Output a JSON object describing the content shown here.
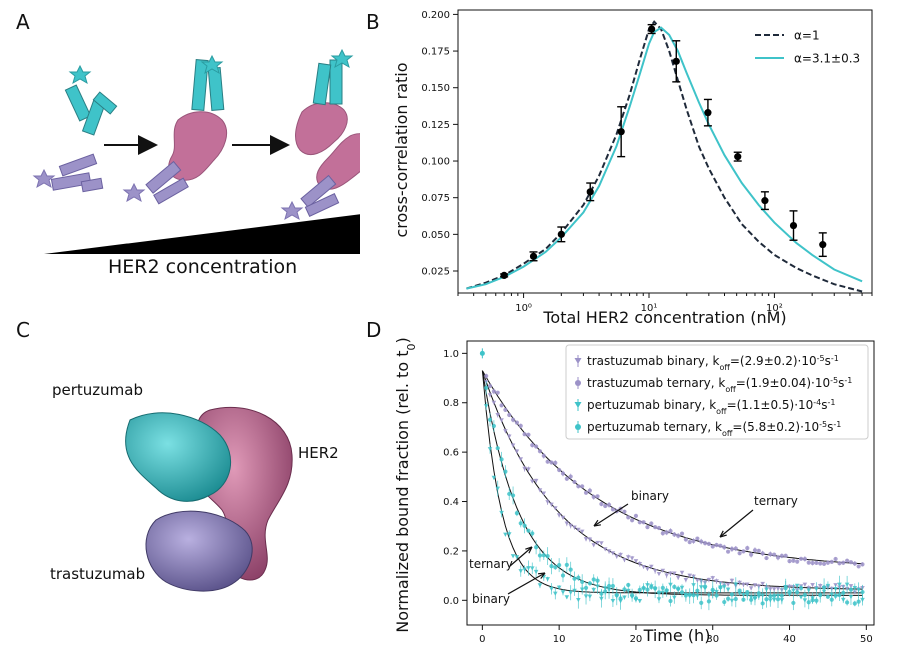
{
  "panels": {
    "a": {
      "letter": "A",
      "caption": "HER2 concentration"
    },
    "b": {
      "letter": "B"
    },
    "c": {
      "letter": "C",
      "labels": {
        "pertuzumab": "pertuzumab",
        "her2": "HER2",
        "trastuzumab": "trastuzumab"
      }
    },
    "d": {
      "letter": "D"
    }
  },
  "colors": {
    "teal": "#3fc3c9",
    "lavender": "#9c92c8",
    "pink": "#c27099",
    "black": "#000000",
    "dark_dash": "#1f2a3a"
  },
  "chart_data": [
    {
      "id": "B",
      "type": "scatter",
      "xscale": "log",
      "xlabel": "Total HER2 concentration (nM)",
      "ylabel": "cross-correlation ratio",
      "xlim": [
        0.3,
        600
      ],
      "ylim": [
        0.01,
        0.203
      ],
      "x_ticks": [
        "10⁰",
        "10¹",
        "10²"
      ],
      "y_ticks": [
        "0.025",
        "0.050",
        "0.075",
        "0.100",
        "0.125",
        "0.150",
        "0.175",
        "0.200"
      ],
      "points": {
        "x": [
          0.7,
          1.2,
          2.0,
          3.4,
          6.0,
          10.5,
          16.5,
          29.5,
          51,
          84,
          142,
          243
        ],
        "y": [
          0.022,
          0.035,
          0.05,
          0.079,
          0.12,
          0.19,
          0.168,
          0.133,
          0.103,
          0.073,
          0.056,
          0.043
        ],
        "err": [
          0.001,
          0.003,
          0.005,
          0.006,
          0.017,
          0.003,
          0.014,
          0.009,
          0.003,
          0.006,
          0.01,
          0.008
        ]
      },
      "legend_position": "top-right",
      "series": [
        {
          "name": "α=1",
          "style": "dashed",
          "color": "#1f2a3a",
          "x": [
            0.35,
            0.5,
            0.7,
            1.0,
            1.5,
            2.0,
            3.0,
            4.0,
            5.5,
            7.0,
            8.5,
            10.0,
            11.0,
            12.5,
            14.5,
            17.0,
            20.0,
            25.0,
            30.0,
            40.0,
            55.0,
            75.0,
            100.0,
            150.0,
            200.0,
            300.0,
            500.0
          ],
          "y": [
            0.013,
            0.017,
            0.022,
            0.03,
            0.04,
            0.051,
            0.07,
            0.09,
            0.118,
            0.145,
            0.17,
            0.19,
            0.195,
            0.19,
            0.175,
            0.155,
            0.135,
            0.11,
            0.095,
            0.075,
            0.057,
            0.045,
            0.036,
            0.027,
            0.022,
            0.016,
            0.011
          ]
        },
        {
          "name": "α=3.1±0.3",
          "style": "solid",
          "color": "#3fc3c9",
          "x": [
            0.35,
            0.5,
            0.7,
            1.0,
            1.5,
            2.0,
            3.0,
            4.0,
            5.5,
            7.0,
            8.5,
            10.0,
            11.0,
            12.5,
            14.5,
            17.0,
            20.0,
            25.0,
            30.0,
            40.0,
            55.0,
            75.0,
            100.0,
            150.0,
            200.0,
            300.0,
            500.0
          ],
          "y": [
            0.013,
            0.016,
            0.021,
            0.028,
            0.038,
            0.048,
            0.065,
            0.083,
            0.11,
            0.137,
            0.16,
            0.18,
            0.188,
            0.191,
            0.186,
            0.175,
            0.16,
            0.14,
            0.125,
            0.104,
            0.085,
            0.07,
            0.058,
            0.044,
            0.036,
            0.026,
            0.018
          ]
        }
      ]
    },
    {
      "id": "D",
      "type": "scatter",
      "xlabel": "Time (h)",
      "ylabel": "Normalized bound fraction (rel. to t",
      "ylabel_sub": "0",
      "ylabel_end": ")",
      "xlim": [
        -2,
        51
      ],
      "ylim": [
        -0.1,
        1.05
      ],
      "x_ticks": [
        "0",
        "10",
        "20",
        "30",
        "40",
        "50"
      ],
      "y_ticks": [
        "0.0",
        "0.2",
        "0.4",
        "0.6",
        "0.8",
        "1.0"
      ],
      "legend_position": "top-right",
      "legend": [
        {
          "name": "trastuzumab binary, k",
          "sub": "off",
          "rest": "=(2.9±0.2)·10",
          "sup": "-5",
          "unit": "s",
          "unit_sup": "-1",
          "marker": "triangle",
          "color": "#9c92c8"
        },
        {
          "name": "trastuzumab ternary, k",
          "sub": "off",
          "rest": "=(1.9±0.04)·10",
          "sup": "-5",
          "unit": "s",
          "unit_sup": "-1",
          "marker": "circle",
          "color": "#9c92c8"
        },
        {
          "name": "pertuzumab binary, k",
          "sub": "off",
          "rest": "=(1.1±0.5)·10",
          "sup": "-4",
          "unit": "s",
          "unit_sup": "-1",
          "marker": "triangle",
          "color": "#3fc3c9"
        },
        {
          "name": "pertuzumab ternary, k",
          "sub": "off",
          "rest": "=(5.8±0.2)·10",
          "sup": "-5",
          "unit": "s",
          "unit_sup": "-1",
          "marker": "circle",
          "color": "#3fc3c9"
        }
      ],
      "series": [
        {
          "name": "trastuzumab binary",
          "color": "#9c92c8",
          "marker": "triangle",
          "k_per_h": 0.104,
          "plateau": 0.04
        },
        {
          "name": "trastuzumab ternary",
          "color": "#9c92c8",
          "marker": "circle",
          "k_per_h": 0.068,
          "plateau": 0.12
        },
        {
          "name": "pertuzumab binary",
          "color": "#3fc3c9",
          "marker": "triangle",
          "k_per_h": 0.4,
          "plateau": 0.03
        },
        {
          "name": "pertuzumab ternary",
          "color": "#3fc3c9",
          "marker": "circle",
          "k_per_h": 0.21,
          "plateau": 0.02
        }
      ],
      "annotations": [
        {
          "text": "binary"
        },
        {
          "text": "ternary"
        },
        {
          "text": "ternary"
        },
        {
          "text": "binary"
        }
      ]
    }
  ]
}
